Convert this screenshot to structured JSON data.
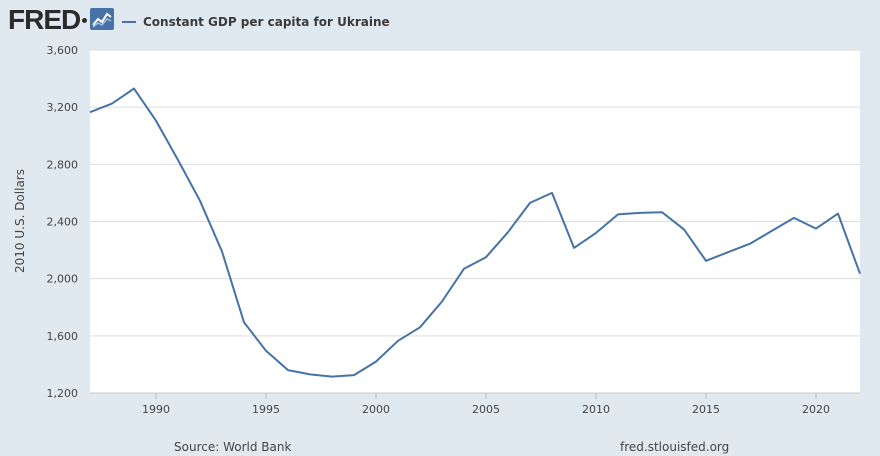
{
  "header": {
    "logo_text": "FRED",
    "legend_label": "Constant GDP per capita for Ukraine"
  },
  "footer": {
    "source": "Source: World Bank",
    "site": "fred.stlouisfed.org"
  },
  "colors": {
    "background": "#e1e9f0",
    "plot_background": "#ffffff",
    "line": "#4572a7",
    "grid": "#d8d8d8"
  },
  "chart_data": {
    "type": "line",
    "title": "",
    "xlabel": "",
    "ylabel": "2010 U.S. Dollars",
    "xlim": [
      1987,
      2022
    ],
    "ylim": [
      1200,
      3600
    ],
    "yticks": [
      1200,
      1600,
      2000,
      2400,
      2800,
      3200,
      3600
    ],
    "ytick_labels": [
      "1,200",
      "1,600",
      "2,000",
      "2,400",
      "2,800",
      "3,200",
      "3,600"
    ],
    "xticks": [
      1990,
      1995,
      2000,
      2005,
      2010,
      2015,
      2020
    ],
    "xtick_labels": [
      "1990",
      "1995",
      "2000",
      "2005",
      "2010",
      "2015",
      "2020"
    ],
    "grid": "horizontal",
    "legend": "top-left",
    "series": [
      {
        "name": "Constant GDP per capita for Ukraine",
        "x": [
          1987,
          1988,
          1989,
          1990,
          1991,
          1992,
          1993,
          1994,
          1995,
          1996,
          1997,
          1998,
          1999,
          2000,
          2001,
          2002,
          2003,
          2004,
          2005,
          2006,
          2007,
          2008,
          2009,
          2010,
          2011,
          2012,
          2013,
          2014,
          2015,
          2016,
          2017,
          2018,
          2019,
          2020,
          2021,
          2022
        ],
        "y": [
          3165,
          3225,
          3330,
          3105,
          2830,
          2545,
          2190,
          1695,
          1495,
          1360,
          1330,
          1315,
          1325,
          1420,
          1565,
          1660,
          1840,
          2070,
          2150,
          2325,
          2530,
          2600,
          2215,
          2320,
          2450,
          2460,
          2465,
          2345,
          2125,
          2185,
          2245,
          2335,
          2425,
          2350,
          2455,
          2035
        ]
      }
    ]
  }
}
